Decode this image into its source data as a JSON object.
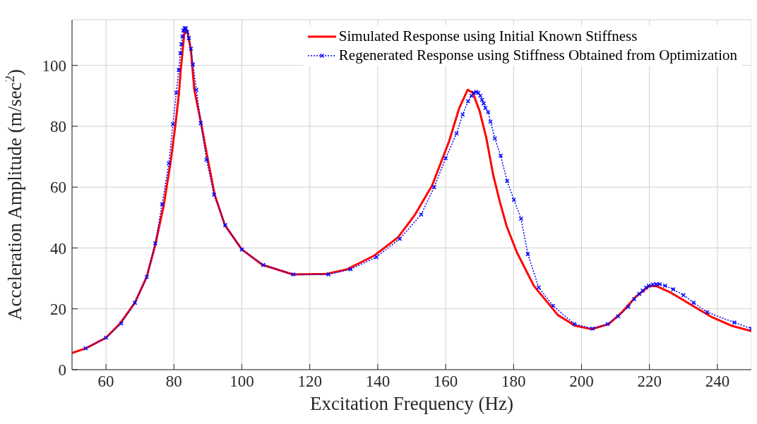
{
  "chart_data": {
    "type": "line",
    "xlabel": "Excitation Frequency (Hz)",
    "ylabel": "Acceleration Amplitude (m/sec$^{2}$)",
    "xlim": [
      50,
      250
    ],
    "xticks": [
      60,
      80,
      100,
      120,
      140,
      160,
      180,
      200,
      220,
      240
    ],
    "ylim": [
      0,
      115
    ],
    "yticks": [
      0,
      20,
      40,
      60,
      80,
      100
    ],
    "grid": true,
    "legend": "top right",
    "series": [
      {
        "name": "Simulated Response using Initial Known Stiffness",
        "color": "#ff0000",
        "marker": "none",
        "line_style": "solid",
        "x": [
          50,
          54,
          60,
          64,
          68.5,
          72,
          74.5,
          77,
          79,
          80.5,
          81.5,
          82,
          82.5,
          83,
          83.5,
          84,
          85,
          86,
          88,
          90,
          92,
          95,
          100,
          106,
          115,
          125,
          131,
          139,
          146,
          151,
          156,
          161,
          164,
          166.5,
          168,
          170,
          172,
          174,
          176,
          178,
          181,
          186,
          193,
          198,
          203,
          208,
          212,
          216,
          220,
          222,
          226,
          232,
          238,
          244,
          250
        ],
        "values": [
          5.5,
          7,
          10.5,
          15,
          22,
          30.5,
          41,
          54,
          68,
          81,
          91,
          98.5,
          104,
          110,
          112,
          111,
          105,
          92,
          81,
          69,
          57.5,
          47.5,
          39.5,
          34.5,
          31.3,
          31.5,
          33,
          37.5,
          43.5,
          51,
          60.5,
          75,
          86,
          92,
          91,
          85,
          76,
          64,
          55,
          47,
          38.5,
          27.5,
          18,
          14.5,
          13.3,
          15,
          19,
          24,
          27.5,
          27.5,
          25.5,
          21.5,
          17.5,
          14.5,
          12.7
        ]
      },
      {
        "name": "Regenerated Response using Stiffness Obtained from Optimization",
        "color": "#0000ff",
        "marker": "cross",
        "line_style": "dotted",
        "x": [
          54,
          60,
          64.5,
          68.5,
          72,
          74.5,
          76.5,
          78.5,
          79.7,
          80.7,
          81.4,
          81.9,
          82.2,
          82.5,
          82.8,
          83.1,
          83.5,
          83.9,
          84.4,
          85,
          85.6,
          86.6,
          87.9,
          89.6,
          91.8,
          95.1,
          100,
          106.3,
          115.1,
          125.5,
          132,
          139.6,
          146.5,
          152.8,
          156.6,
          160,
          163.2,
          165,
          166.6,
          167.6,
          168.3,
          169,
          169.6,
          170.2,
          170.7,
          171.2,
          171.7,
          172.5,
          173.2,
          174.5,
          176.2,
          178.1,
          180.1,
          182.2,
          184.2,
          187.4,
          191.6,
          197.9,
          203.2,
          207.7,
          210.8,
          213.8,
          215.5,
          217,
          218,
          219,
          219.8,
          221,
          222,
          223,
          224.6,
          227,
          230,
          233,
          237,
          245,
          250
        ],
        "values": [
          7,
          10.5,
          15.2,
          22,
          30.5,
          41.5,
          54.3,
          67.8,
          80.7,
          91,
          98.5,
          104,
          107,
          109.5,
          111.5,
          112.2,
          112.2,
          111,
          109,
          105.5,
          100.3,
          92,
          81,
          69,
          57.5,
          47.5,
          39.5,
          34.4,
          31.3,
          31.3,
          33,
          37,
          43,
          51,
          60,
          69.5,
          77.6,
          83.8,
          88.2,
          90,
          91,
          91.3,
          91,
          90,
          88.7,
          87.5,
          86,
          84.7,
          81.5,
          76,
          70.3,
          62,
          55.8,
          49.6,
          38,
          27,
          21,
          15,
          13.5,
          15,
          17.5,
          20.7,
          23.2,
          24.9,
          26,
          27,
          27.6,
          28,
          28.1,
          28.1,
          27.6,
          26.4,
          24.5,
          22,
          18.9,
          15.5,
          13.5
        ]
      }
    ]
  }
}
